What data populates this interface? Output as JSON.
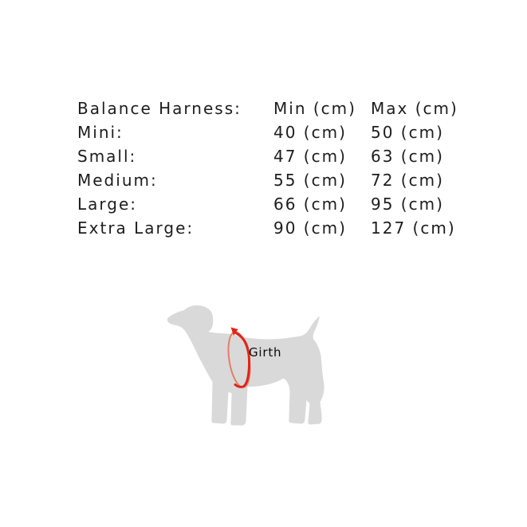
{
  "size_table": {
    "header": [
      "Balance Harness:",
      "Min (cm)",
      "Max (cm)"
    ],
    "rows": [
      [
        "Mini:",
        "40 (cm)",
        "50 (cm)"
      ],
      [
        "Small:",
        "47 (cm)",
        "63 (cm)"
      ],
      [
        "Medium:",
        "55 (cm)",
        "72 (cm)"
      ],
      [
        "Large:",
        "66 (cm)",
        "95 (cm)"
      ],
      [
        "Extra Large:",
        "90 (cm)",
        "127 (cm)"
      ]
    ]
  },
  "figure": {
    "girth_label": "Girth"
  },
  "colors": {
    "table_text": "#1d1d1d",
    "girth_label_text": "#0a0a0a",
    "dog_gray": "#d9d9d9",
    "arrow_red": "#e3231a",
    "arrow_red_light": "#de8168"
  }
}
